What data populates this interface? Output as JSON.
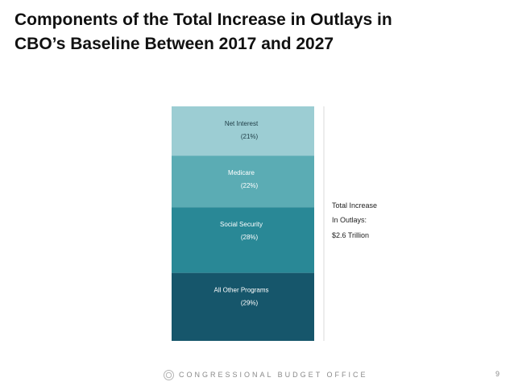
{
  "title": {
    "line1": "Components of the Total Increase in Outlays in",
    "line2": "CBO’s Baseline Between 2017 and 2027"
  },
  "chart_data": {
    "type": "bar",
    "stacked": true,
    "categories": [
      "Total Increase in Outlays"
    ],
    "series": [
      {
        "name": "All Other Programs",
        "label": "(29%)",
        "values": [
          29
        ],
        "color": "#16566b"
      },
      {
        "name": "Social Security",
        "label": "(28%)",
        "values": [
          28
        ],
        "color": "#298896"
      },
      {
        "name": "Medicare",
        "label": "(22%)",
        "values": [
          22
        ],
        "color": "#5bacb4"
      },
      {
        "name": "Net Interest",
        "label": "(21%)",
        "values": [
          21
        ],
        "color": "#9ccdd3"
      }
    ],
    "annotation": {
      "line1": "Total Increase",
      "line2": "In Outlays:",
      "line3": "$2.6 Trillion"
    },
    "ylim": [
      0,
      100
    ]
  },
  "footer": {
    "org": "CONGRESSIONAL BUDGET OFFICE",
    "page": "9"
  }
}
